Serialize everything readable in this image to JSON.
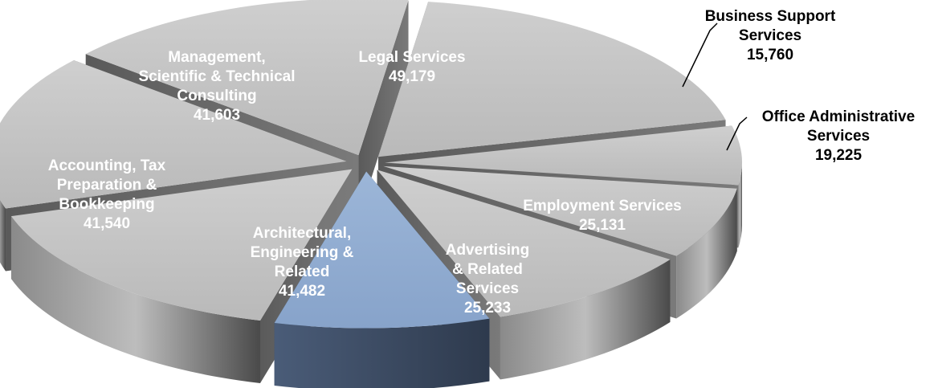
{
  "chart_data": {
    "type": "pie",
    "style": "3d-exploded",
    "title": "",
    "highlight": "Advertising & Related Services",
    "colors": {
      "slice_top": "#c4c4c4",
      "slice_side": "#6a6a6a",
      "highlight_top": "#93aed2",
      "highlight_side": "#3a4a61",
      "label_inside": "#ffffff",
      "label_outside": "#000000"
    },
    "slices": [
      {
        "name": "Legal Services",
        "value": 49179,
        "value_label": "49,179",
        "label_lines": [
          "Legal Services"
        ]
      },
      {
        "name": "Business Support Services",
        "value": 15760,
        "value_label": "15,760",
        "label_lines": [
          "Business Support",
          "Services"
        ]
      },
      {
        "name": "Office Administrative Services",
        "value": 19225,
        "value_label": "19,225",
        "label_lines": [
          "Office Administrative",
          "Services"
        ]
      },
      {
        "name": "Employment Services",
        "value": 25131,
        "value_label": "25,131",
        "label_lines": [
          "Employment Services"
        ]
      },
      {
        "name": "Advertising & Related Services",
        "value": 25233,
        "value_label": "25,233",
        "label_lines": [
          "Advertising",
          "& Related",
          "Services"
        ]
      },
      {
        "name": "Architectural, Engineering & Related",
        "value": 41482,
        "value_label": "41,482",
        "label_lines": [
          "Architectural,",
          "Engineering &",
          "Related"
        ]
      },
      {
        "name": "Accounting, Tax Preparation & Bookkeeping",
        "value": 41540,
        "value_label": "41,540",
        "label_lines": [
          "Accounting, Tax",
          "Preparation &",
          "Bookkeeping"
        ]
      },
      {
        "name": "Management, Scientific & Technical Consulting",
        "value": 41603,
        "value_label": "41,603",
        "label_lines": [
          "Management,",
          "Scientific & Technical",
          "Consulting"
        ]
      }
    ]
  }
}
